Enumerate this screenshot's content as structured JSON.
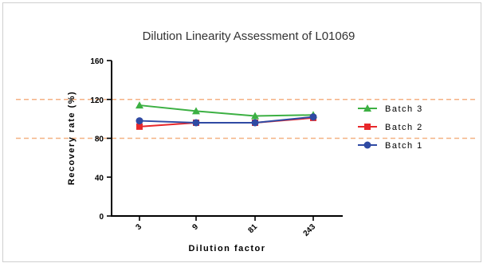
{
  "chart_data": {
    "type": "line",
    "title": "Dilution Linearity Assessment of L01069",
    "xlabel": "Dilution factor",
    "ylabel": "Recovery rate (%)",
    "categories": [
      "3",
      "9",
      "81",
      "243"
    ],
    "ylim": [
      0,
      160
    ],
    "yticks": [
      "0",
      "40",
      "80",
      "120",
      "160"
    ],
    "reference_lines": [
      80,
      120
    ],
    "reference_line_color": "#f4b183",
    "grid": false,
    "legend_position": "right",
    "series": [
      {
        "name": "Batch 3",
        "values": [
          114,
          108,
          103,
          104
        ],
        "color": "#3cb043",
        "marker": "triangle"
      },
      {
        "name": "Batch 2",
        "values": [
          92,
          96,
          96,
          101
        ],
        "color": "#e8282b",
        "marker": "square"
      },
      {
        "name": "Batch 1",
        "values": [
          98,
          96,
          96,
          102
        ],
        "color": "#2f4aa3",
        "marker": "circle"
      }
    ]
  }
}
